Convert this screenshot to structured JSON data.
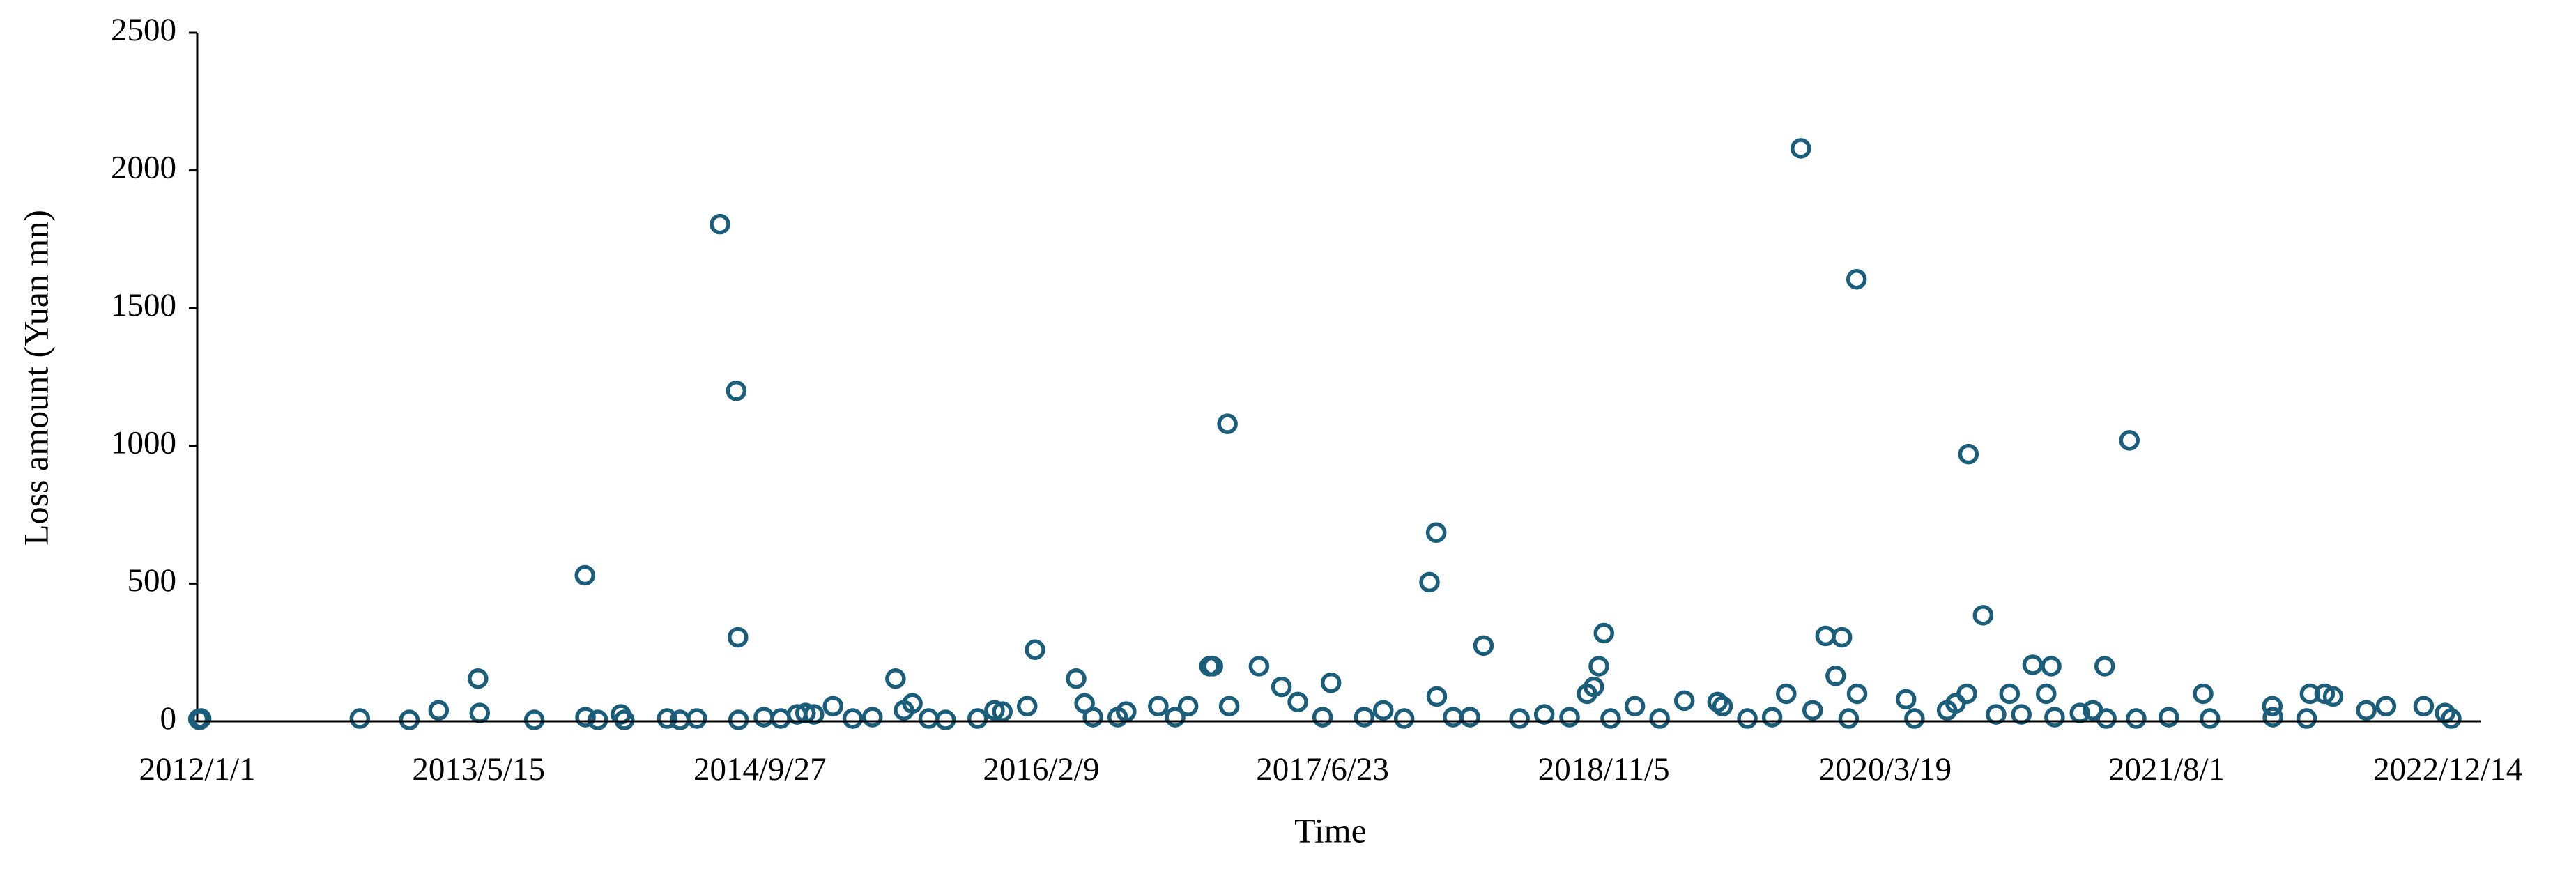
{
  "chart_data": {
    "type": "scatter",
    "x_label": "Time",
    "y_label": "Loss amount (Yuan mn)",
    "color": "#1b5e7b",
    "xlim": [
      "2012/1/1",
      "2023/2/10"
    ],
    "xticks": [
      "2012/1/1",
      "2013/5/15",
      "2014/9/27",
      "2016/2/9",
      "2017/6/23",
      "2018/11/5",
      "2020/3/19",
      "2021/8/1",
      "2022/12/14"
    ],
    "ylim": [
      0,
      2500
    ],
    "yticks": [
      0,
      500,
      1000,
      1500,
      2000,
      2500
    ],
    "grid": false,
    "x": [
      "2012/1/3",
      "2012/1/5",
      "2012/1/8",
      "2012/10/16",
      "2013/1/12",
      "2013/3/5",
      "2013/5/14",
      "2013/5/17",
      "2013/8/22",
      "2013/11/20",
      "2013/11/21",
      "2013/12/13",
      "2014/1/23",
      "2014/1/29",
      "2014/4/15",
      "2014/5/8",
      "2014/6/7",
      "2014/7/18",
      "2014/8/16",
      "2014/8/19",
      "2014/8/20",
      "2014/10/4",
      "2014/11/3",
      "2014/12/2",
      "2014/12/17",
      "2015/1/1",
      "2015/2/4",
      "2015/3/11",
      "2015/4/15",
      "2015/5/26",
      "2015/6/10",
      "2015/6/25",
      "2015/7/24",
      "2015/8/23",
      "2015/10/19",
      "2015/11/18",
      "2015/12/2",
      "2016/1/15",
      "2016/1/29",
      "2016/4/11",
      "2016/4/26",
      "2016/5/11",
      "2016/6/24",
      "2016/7/9",
      "2016/9/4",
      "2016/10/4",
      "2016/10/27",
      "2016/12/4",
      "2016/12/10",
      "2017/1/5",
      "2017/1/8",
      "2017/3/2",
      "2017/4/11",
      "2017/5/10",
      "2017/6/23",
      "2017/7/8",
      "2017/9/5",
      "2017/10/9",
      "2017/11/15",
      "2017/12/30",
      "2018/1/11",
      "2018/1/12",
      "2018/2/10",
      "2018/3/12",
      "2018/4/5",
      "2018/6/8",
      "2018/7/22",
      "2018/9/5",
      "2018/10/6",
      "2018/10/18",
      "2018/10/27",
      "2018/11/5",
      "2018/11/17",
      "2018/12/30",
      "2019/2/12",
      "2019/3/28",
      "2019/5/26",
      "2019/6/4",
      "2019/7/18",
      "2019/8/31",
      "2019/9/25",
      "2019/10/21",
      "2019/11/11",
      "2019/12/4",
      "2019/12/22",
      "2020/1/2",
      "2020/1/14",
      "2020/1/28",
      "2020/1/29",
      "2020/4/25",
      "2020/5/10",
      "2020/7/7",
      "2020/7/22",
      "2020/8/11",
      "2020/8/14",
      "2020/9/9",
      "2020/10/2",
      "2020/10/26",
      "2020/11/16",
      "2020/12/6",
      "2020/12/30",
      "2021/1/8",
      "2021/1/14",
      "2021/2/28",
      "2021/3/23",
      "2021/4/13",
      "2021/4/16",
      "2021/5/27",
      "2021/6/8",
      "2021/8/5",
      "2021/10/5",
      "2021/10/17",
      "2022/2/5",
      "2022/2/6",
      "2022/4/7",
      "2022/4/13",
      "2022/5/9",
      "2022/5/24",
      "2022/7/22",
      "2022/8/26",
      "2022/11/1",
      "2022/12/9",
      "2022/12/20"
    ],
    "values": [
      8,
      5,
      10,
      10,
      5,
      40,
      155,
      30,
      5,
      530,
      15,
      5,
      25,
      5,
      10,
      5,
      10,
      1805,
      1200,
      305,
      5,
      15,
      10,
      25,
      30,
      25,
      55,
      10,
      15,
      155,
      40,
      65,
      10,
      5,
      10,
      40,
      35,
      55,
      260,
      155,
      65,
      15,
      15,
      35,
      55,
      15,
      55,
      200,
      200,
      1080,
      55,
      200,
      125,
      70,
      15,
      140,
      15,
      40,
      10,
      505,
      685,
      90,
      15,
      15,
      275,
      10,
      25,
      15,
      100,
      125,
      200,
      320,
      10,
      55,
      10,
      75,
      70,
      55,
      10,
      15,
      100,
      2080,
      40,
      310,
      165,
      305,
      10,
      1605,
      100,
      80,
      10,
      40,
      65,
      100,
      970,
      385,
      25,
      100,
      25,
      205,
      100,
      200,
      15,
      30,
      40,
      200,
      10,
      1020,
      10,
      15,
      100,
      10,
      55,
      15,
      10,
      100,
      100,
      90,
      40,
      55,
      55,
      30,
      10
    ]
  }
}
